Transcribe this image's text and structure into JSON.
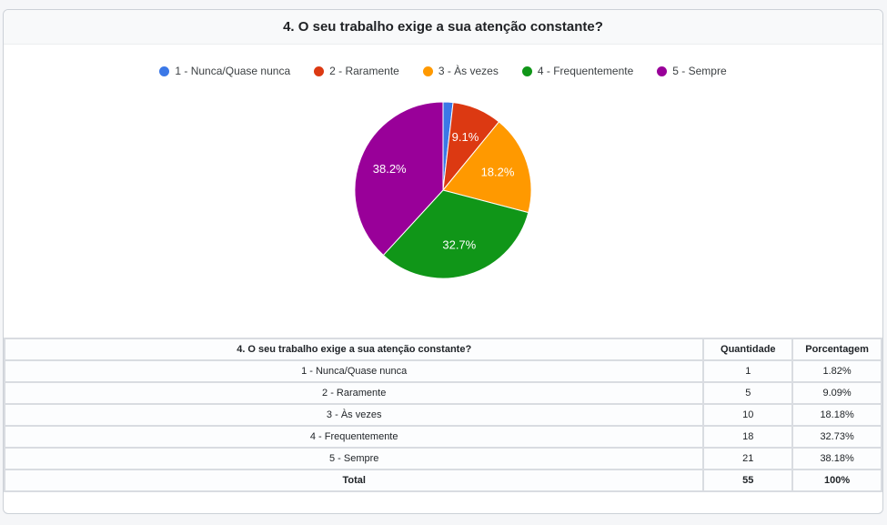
{
  "card": {
    "title": "4. O seu trabalho exige a sua atenção constante?"
  },
  "legend": {
    "position": "top",
    "items": [
      {
        "label": "1 - Nunca/Quase nunca",
        "color": "#3b78e7"
      },
      {
        "label": "2 - Raramente",
        "color": "#dc3912"
      },
      {
        "label": "3 - Às vezes",
        "color": "#ff9900"
      },
      {
        "label": "4 - Frequentemente",
        "color": "#109618"
      },
      {
        "label": "5 - Sempre",
        "color": "#990099"
      }
    ]
  },
  "chart_data": {
    "type": "pie",
    "title": "4. O seu trabalho exige a sua atenção constante?",
    "categories": [
      "1 - Nunca/Quase nunca",
      "2 - Raramente",
      "3 - Às vezes",
      "4 - Frequentemente",
      "5 - Sempre"
    ],
    "values": [
      1,
      5,
      10,
      18,
      21
    ],
    "percentages": [
      1.82,
      9.09,
      18.18,
      32.73,
      38.18
    ],
    "slice_labels": [
      "",
      "9.1%",
      "18.2%",
      "32.7%",
      "38.2%"
    ],
    "colors": [
      "#3b78e7",
      "#dc3912",
      "#ff9900",
      "#109618",
      "#990099"
    ],
    "total": 55,
    "legend_position": "top",
    "start_angle_deg": 0,
    "direction": "clockwise"
  },
  "table": {
    "headers": [
      "4. O seu trabalho exige a sua atenção constante?",
      "Quantidade",
      "Porcentagem"
    ],
    "rows": [
      [
        "1 - Nunca/Quase nunca",
        "1",
        "1.82%"
      ],
      [
        "2 - Raramente",
        "5",
        "9.09%"
      ],
      [
        "3 - Às vezes",
        "10",
        "18.18%"
      ],
      [
        "4 - Frequentemente",
        "18",
        "32.73%"
      ],
      [
        "5 - Sempre",
        "21",
        "38.18%"
      ]
    ],
    "total_row": [
      "Total",
      "55",
      "100%"
    ]
  }
}
